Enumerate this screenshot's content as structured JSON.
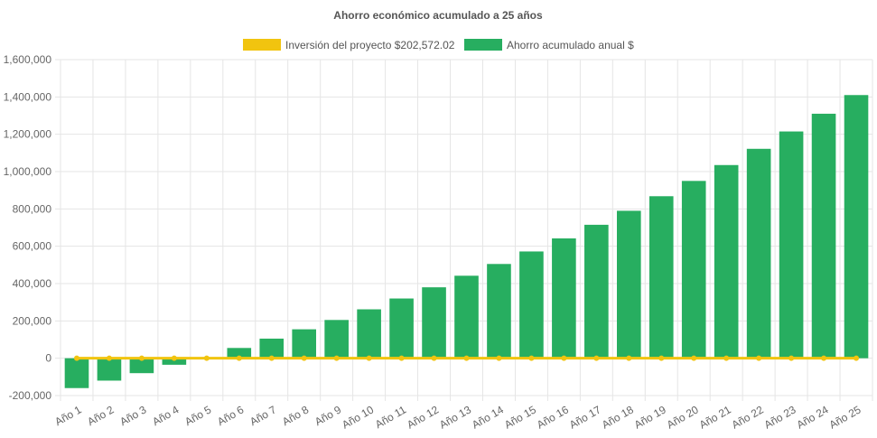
{
  "chart_data": {
    "type": "bar",
    "title": "Ahorro económico acumulado a 25 años",
    "categories": [
      "Año 1",
      "Año 2",
      "Año 3",
      "Año 4",
      "Año 5",
      "Año 6",
      "Año 7",
      "Año 8",
      "Año 9",
      "Año 10",
      "Año 11",
      "Año 12",
      "Año 13",
      "Año 14",
      "Año 15",
      "Año 16",
      "Año 17",
      "Año 18",
      "Año 19",
      "Año 20",
      "Año 21",
      "Año 22",
      "Año 23",
      "Año 24",
      "Año 25"
    ],
    "series": [
      {
        "name": "Inversión del proyecto $202,572.02",
        "type": "line",
        "color": "#f1c40f",
        "values": [
          0,
          0,
          0,
          0,
          0,
          0,
          0,
          0,
          0,
          0,
          0,
          0,
          0,
          0,
          0,
          0,
          0,
          0,
          0,
          0,
          0,
          0,
          0,
          0,
          0
        ]
      },
      {
        "name": "Ahorro acumulado anual $",
        "type": "bar",
        "color": "#27ae60",
        "values": [
          -160000,
          -120000,
          -80000,
          -35000,
          0,
          55000,
          105000,
          155000,
          205000,
          262000,
          320000,
          380000,
          442000,
          505000,
          572000,
          642000,
          715000,
          790000,
          868000,
          950000,
          1035000,
          1122000,
          1215000,
          1310000,
          1410000
        ]
      }
    ],
    "ylim": [
      -200000,
      1600000
    ],
    "yticks": [
      "-200,000",
      "0",
      "200,000",
      "400,000",
      "600,000",
      "800,000",
      "1,000,000",
      "1,200,000",
      "1,400,000",
      "1,600,000"
    ],
    "ytick_values": [
      -200000,
      0,
      200000,
      400000,
      600000,
      800000,
      1000000,
      1200000,
      1400000,
      1600000
    ],
    "legend_position": "top",
    "grid": true
  }
}
